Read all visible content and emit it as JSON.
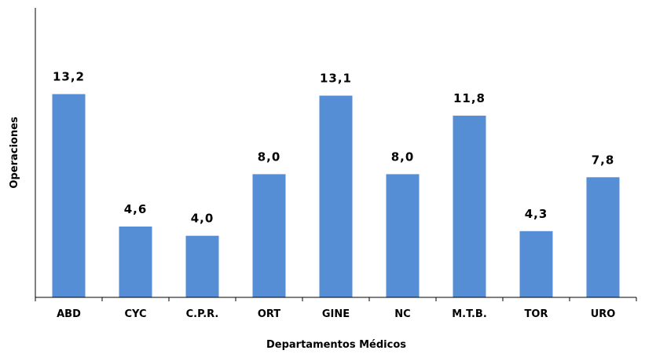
{
  "chart_data": {
    "type": "bar",
    "categories": [
      "ABD",
      "CYC",
      "C.P.R.",
      "ORT",
      "GINE",
      "NC",
      "M.T.B.",
      "TOR",
      "URO"
    ],
    "values": [
      13.2,
      4.6,
      4.0,
      8.0,
      13.1,
      8.0,
      11.8,
      4.3,
      7.8
    ],
    "value_labels": [
      "13,2",
      "4,6",
      "4,0",
      "8,0",
      "13,1",
      "8,0",
      "11,8",
      "4,3",
      "7,8"
    ],
    "title": "",
    "xlabel": "Departamentos Médicos",
    "ylabel": "Operaciones",
    "ylim": [
      0,
      18.8
    ],
    "grid": false,
    "legend": "none",
    "bar_color": "#558ED5"
  }
}
